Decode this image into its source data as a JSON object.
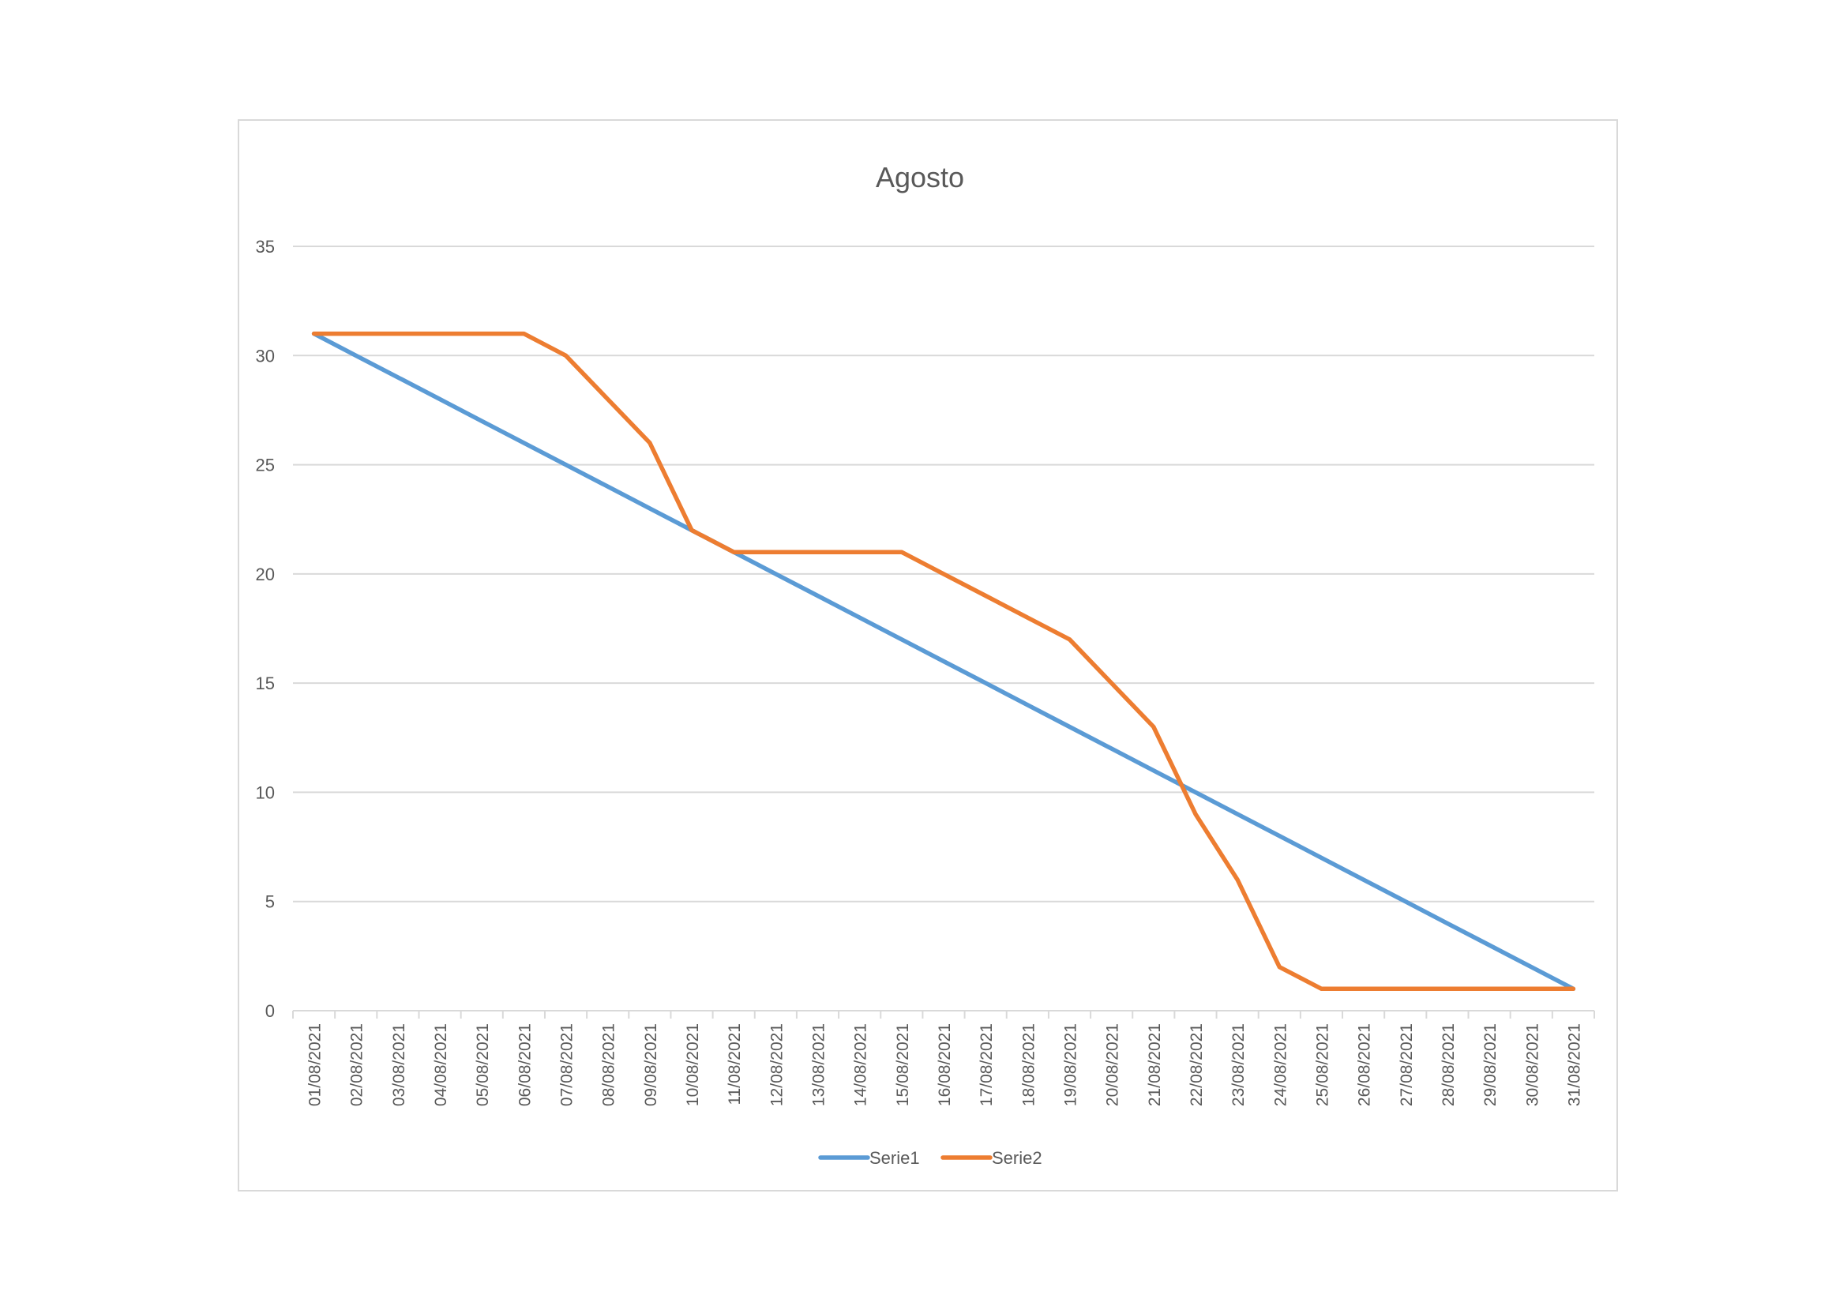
{
  "chart_data": {
    "type": "line",
    "title": "Agosto",
    "xlabel": "",
    "ylabel": "",
    "ylim": [
      0,
      35
    ],
    "y_ticks": [
      "0",
      "5",
      "10",
      "15",
      "20",
      "25",
      "30",
      "35"
    ],
    "grid": true,
    "legend_position": "bottom",
    "categories": [
      "01/08/2021",
      "02/08/2021",
      "03/08/2021",
      "04/08/2021",
      "05/08/2021",
      "06/08/2021",
      "07/08/2021",
      "08/08/2021",
      "09/08/2021",
      "10/08/2021",
      "11/08/2021",
      "12/08/2021",
      "13/08/2021",
      "14/08/2021",
      "15/08/2021",
      "16/08/2021",
      "17/08/2021",
      "18/08/2021",
      "19/08/2021",
      "20/08/2021",
      "21/08/2021",
      "22/08/2021",
      "23/08/2021",
      "24/08/2021",
      "25/08/2021",
      "26/08/2021",
      "27/08/2021",
      "28/08/2021",
      "29/08/2021",
      "30/08/2021",
      "31/08/2021"
    ],
    "series": [
      {
        "name": "Serie1",
        "color": "#5b9bd5",
        "values": [
          31,
          30,
          29,
          28,
          27,
          26,
          25,
          24,
          23,
          22,
          21,
          20,
          19,
          18,
          17,
          16,
          15,
          14,
          13,
          12,
          11,
          10,
          9,
          8,
          7,
          6,
          5,
          4,
          3,
          2,
          1
        ]
      },
      {
        "name": "Serie2",
        "color": "#ed7d31",
        "values": [
          31,
          31,
          31,
          31,
          31,
          31,
          30,
          28,
          26,
          22,
          21,
          21,
          21,
          21,
          21,
          20,
          19,
          18,
          17,
          15,
          13,
          9,
          6,
          2,
          1,
          1,
          1,
          1,
          1,
          1,
          1
        ]
      }
    ]
  }
}
